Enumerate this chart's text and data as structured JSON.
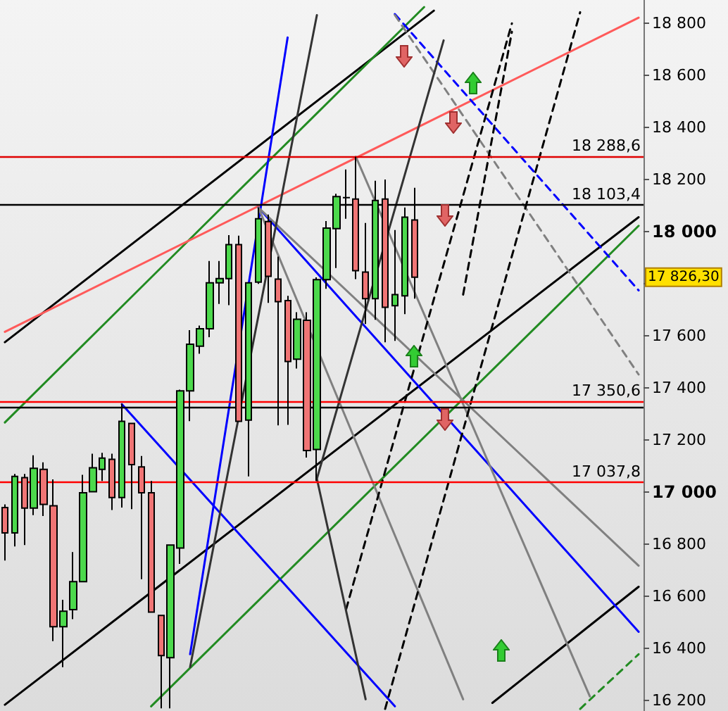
{
  "chart_data": {
    "type": "candlestick",
    "categories": [
      null,
      null,
      null,
      null,
      null,
      null,
      null,
      null,
      null,
      null,
      null,
      null,
      null,
      null,
      null,
      null,
      null,
      null,
      null,
      null,
      null,
      null,
      null,
      null,
      null,
      null,
      null,
      null,
      null,
      null,
      null,
      null,
      null,
      null,
      null,
      null,
      null,
      null,
      null,
      null,
      null,
      null,
      null,
      null,
      null,
      null,
      null,
      null,
      null,
      null,
      null,
      null,
      null,
      null,
      null,
      null,
      null,
      null,
      null,
      null,
      null,
      null,
      null,
      null,
      null,
      null
    ],
    "ohlc": [
      [
        16941,
        16953,
        16738,
        16844
      ],
      [
        16844,
        17070,
        16792,
        17061
      ],
      [
        17056,
        17070,
        16797,
        16939
      ],
      [
        16939,
        17142,
        16912,
        17092
      ],
      [
        17088,
        17115,
        16909,
        16953
      ],
      [
        16948,
        17049,
        16428,
        16484
      ],
      [
        16484,
        16587,
        16328,
        16543
      ],
      [
        16549,
        16770,
        16513,
        16657
      ],
      [
        16657,
        17067,
        16657,
        16998
      ],
      [
        17002,
        17148,
        17002,
        17094
      ],
      [
        17088,
        17151,
        17043,
        17131
      ],
      [
        17126,
        17148,
        16932,
        16980
      ],
      [
        16980,
        17340,
        16941,
        17272
      ],
      [
        17264,
        17264,
        16935,
        17106
      ],
      [
        17097,
        17139,
        16666,
        16998
      ],
      [
        16998,
        17043,
        16540,
        16540
      ],
      [
        16527,
        16527,
        16170,
        16373
      ],
      [
        16365,
        16800,
        16170,
        16797
      ],
      [
        16786,
        17394,
        16725,
        17389
      ],
      [
        17389,
        17622,
        17273,
        17568
      ],
      [
        17561,
        17640,
        17532,
        17628
      ],
      [
        17628,
        17888,
        17595,
        17804
      ],
      [
        17804,
        17888,
        17723,
        17820
      ],
      [
        17820,
        17987,
        17718,
        17951
      ],
      [
        17951,
        17985,
        17272,
        17272
      ],
      [
        17277,
        17804,
        17061,
        17804
      ],
      [
        17807,
        18093,
        17800,
        18050
      ],
      [
        18039,
        18066,
        17727,
        17829
      ],
      [
        17818,
        17905,
        17257,
        17732
      ],
      [
        17736,
        17754,
        17259,
        17502
      ],
      [
        17511,
        17691,
        17475,
        17664
      ],
      [
        17660,
        17691,
        17133,
        17160
      ],
      [
        17164,
        17825,
        17043,
        17816
      ],
      [
        17816,
        18041,
        17781,
        18014
      ],
      [
        18012,
        18146,
        17861,
        18135
      ],
      [
        18131,
        18239,
        18050,
        18131
      ],
      [
        18126,
        18288,
        17818,
        17851
      ],
      [
        17845,
        18034,
        17646,
        17743
      ],
      [
        17743,
        18196,
        17662,
        18120
      ],
      [
        18126,
        18201,
        17576,
        17710
      ],
      [
        17716,
        18007,
        17581,
        17759
      ],
      [
        17754,
        18093,
        17684,
        18056
      ],
      [
        18045,
        18169,
        17743,
        17826
      ],
      null,
      null,
      null,
      null,
      null,
      null,
      null,
      null,
      null,
      null,
      null,
      null,
      null,
      null,
      null,
      null,
      null,
      null,
      null,
      null,
      null,
      null,
      null
    ],
    "colors": [
      "#f07575",
      "#4cd94c",
      "#f07575",
      "#4cd94c",
      "#f07575",
      "#f07575",
      "#4cd94c",
      "#4cd94c",
      "#4cd94c",
      "#4cd94c",
      "#4cd94c",
      "#f07575",
      "#4cd94c",
      "#f07575",
      "#f07575",
      "#f07575",
      "#f07575",
      "#4cd94c",
      "#4cd94c",
      "#4cd94c",
      "#4cd94c",
      "#4cd94c",
      "#4cd94c",
      "#4cd94c",
      "#f07575",
      "#4cd94c",
      "#4cd94c",
      "#f07575",
      "#f07575",
      "#f07575",
      "#4cd94c",
      "#f07575",
      "#4cd94c",
      "#4cd94c",
      "#4cd94c",
      "#000000",
      "#f07575",
      "#f07575",
      "#4cd94c",
      "#f07575",
      "#4cd94c",
      "#4cd94c",
      "#f07575",
      null,
      null,
      null,
      null,
      null,
      null,
      null,
      null,
      null,
      null,
      null,
      null,
      null,
      null,
      null,
      null,
      null,
      null,
      null,
      null,
      null,
      null,
      null
    ],
    "series": [
      {
        "type": "line",
        "color": "#000000",
        "values": [
          17576,
          null,
          null,
          null,
          null,
          null,
          null,
          null,
          null,
          null,
          null,
          null,
          null,
          null,
          null,
          null,
          null,
          null,
          null,
          null,
          null,
          null,
          null,
          null,
          null,
          null,
          null,
          null,
          null,
          null,
          null,
          null,
          null,
          null,
          null,
          null,
          null,
          null,
          null,
          null,
          null,
          null,
          null,
          null,
          18849,
          null,
          null,
          null,
          null,
          null,
          null,
          null,
          null,
          null,
          null,
          null,
          null,
          null,
          null,
          null,
          null,
          null,
          null,
          null,
          null,
          null
        ]
      },
      {
        "type": "line",
        "color": "#000000",
        "values": [
          16184,
          null,
          null,
          null,
          null,
          null,
          null,
          null,
          null,
          null,
          null,
          null,
          null,
          null,
          null,
          null,
          null,
          null,
          null,
          null,
          null,
          null,
          null,
          null,
          null,
          null,
          null,
          null,
          null,
          null,
          null,
          null,
          null,
          null,
          null,
          null,
          null,
          null,
          null,
          null,
          null,
          null,
          null,
          null,
          null,
          null,
          null,
          null,
          null,
          null,
          null,
          null,
          null,
          null,
          null,
          null,
          null,
          null,
          null,
          null,
          null,
          null,
          null,
          null,
          null,
          18056
        ]
      },
      {
        "type": "line",
        "color": "#000000",
        "values": [
          null,
          null,
          null,
          null,
          null,
          null,
          null,
          null,
          null,
          null,
          null,
          null,
          null,
          null,
          null,
          null,
          null,
          null,
          null,
          null,
          null,
          null,
          null,
          null,
          null,
          null,
          null,
          null,
          null,
          null,
          null,
          null,
          null,
          null,
          null,
          null,
          null,
          null,
          null,
          null,
          null,
          null,
          null,
          null,
          null,
          null,
          null,
          null,
          null,
          null,
          16191,
          null,
          null,
          null,
          null,
          null,
          null,
          null,
          null,
          null,
          null,
          null,
          null,
          null,
          null,
          16637
        ]
      },
      {
        "type": "line",
        "color": "#228b22",
        "values": [
          17268,
          null,
          null,
          null,
          null,
          null,
          null,
          null,
          null,
          null,
          null,
          null,
          null,
          null,
          null,
          null,
          null,
          null,
          null,
          null,
          null,
          null,
          null,
          null,
          null,
          null,
          null,
          null,
          null,
          null,
          null,
          null,
          null,
          null,
          null,
          null,
          null,
          null,
          null,
          null,
          null,
          null,
          null,
          18863,
          null,
          null,
          null,
          null,
          null,
          null,
          null,
          null,
          null,
          null,
          null,
          null,
          null,
          null,
          null,
          null,
          null,
          null,
          null,
          null,
          null,
          null
        ]
      },
      {
        "type": "line",
        "color": "#228b22",
        "values": [
          null,
          null,
          null,
          null,
          null,
          null,
          null,
          null,
          null,
          null,
          null,
          null,
          null,
          null,
          null,
          16178,
          null,
          null,
          null,
          null,
          null,
          null,
          null,
          null,
          null,
          null,
          null,
          null,
          null,
          null,
          null,
          null,
          null,
          null,
          null,
          null,
          null,
          null,
          null,
          null,
          null,
          null,
          null,
          null,
          null,
          null,
          null,
          null,
          null,
          null,
          null,
          null,
          null,
          null,
          null,
          null,
          null,
          null,
          null,
          null,
          null,
          null,
          null,
          null,
          null,
          18023
        ]
      },
      {
        "type": "line",
        "color": "#228b22",
        "line_style": "dashed",
        "values": [
          null,
          null,
          null,
          null,
          null,
          null,
          null,
          null,
          null,
          null,
          null,
          null,
          null,
          null,
          null,
          null,
          null,
          null,
          null,
          null,
          null,
          null,
          null,
          null,
          null,
          null,
          null,
          null,
          null,
          null,
          null,
          null,
          null,
          null,
          null,
          null,
          null,
          null,
          null,
          null,
          null,
          null,
          null,
          null,
          null,
          null,
          null,
          null,
          null,
          null,
          null,
          null,
          null,
          null,
          null,
          null,
          null,
          null,
          null,
          16168,
          null,
          null,
          null,
          null,
          null,
          16378
        ]
      },
      {
        "type": "line",
        "color": "#ff5a5a",
        "values": [
          17616,
          null,
          null,
          null,
          null,
          null,
          null,
          null,
          null,
          null,
          null,
          null,
          null,
          null,
          null,
          null,
          null,
          null,
          null,
          null,
          null,
          null,
          null,
          null,
          null,
          null,
          null,
          null,
          null,
          null,
          null,
          null,
          null,
          null,
          null,
          null,
          null,
          null,
          null,
          null,
          null,
          null,
          null,
          null,
          null,
          null,
          null,
          null,
          null,
          null,
          null,
          null,
          null,
          null,
          null,
          null,
          null,
          null,
          null,
          null,
          null,
          null,
          null,
          null,
          null,
          18822
        ]
      },
      {
        "type": "line",
        "color": "#0000ff",
        "values": [
          null,
          null,
          null,
          null,
          null,
          null,
          null,
          null,
          null,
          null,
          null,
          null,
          null,
          null,
          null,
          null,
          null,
          null,
          null,
          16378,
          null,
          null,
          null,
          null,
          null,
          null,
          null,
          null,
          null,
          18746,
          null,
          null,
          null,
          null,
          null,
          null,
          null,
          null,
          null,
          null,
          null,
          null,
          null,
          null,
          null,
          null,
          null,
          null,
          null,
          null,
          null,
          null,
          null,
          null,
          null,
          null,
          null,
          null,
          null,
          null,
          null,
          null,
          null,
          null,
          null,
          null
        ]
      },
      {
        "type": "line",
        "color": "#0000ff",
        "values": [
          null,
          null,
          null,
          null,
          null,
          null,
          null,
          null,
          null,
          null,
          null,
          null,
          17338,
          null,
          null,
          null,
          null,
          null,
          null,
          null,
          null,
          null,
          null,
          null,
          null,
          null,
          null,
          null,
          null,
          null,
          null,
          null,
          null,
          null,
          null,
          null,
          null,
          null,
          null,
          null,
          16178,
          null,
          null,
          null,
          null,
          null,
          null,
          null,
          null,
          null,
          null,
          null,
          null,
          null,
          null,
          null,
          null,
          null,
          null,
          null,
          null,
          null,
          null,
          null,
          null,
          null
        ]
      },
      {
        "type": "line",
        "color": "#0000ff",
        "values": [
          null,
          null,
          null,
          null,
          null,
          null,
          null,
          null,
          null,
          null,
          null,
          null,
          null,
          null,
          null,
          null,
          null,
          null,
          null,
          null,
          null,
          null,
          null,
          null,
          null,
          null,
          18093,
          null,
          null,
          null,
          null,
          null,
          null,
          null,
          null,
          null,
          null,
          null,
          null,
          null,
          null,
          null,
          null,
          null,
          null,
          null,
          null,
          null,
          null,
          null,
          null,
          null,
          null,
          null,
          null,
          null,
          null,
          null,
          null,
          null,
          null,
          null,
          null,
          null,
          null,
          16464
        ]
      },
      {
        "type": "line",
        "color": "#0000ff",
        "line_style": "dashed",
        "values": [
          null,
          null,
          null,
          null,
          null,
          null,
          null,
          null,
          null,
          null,
          null,
          null,
          null,
          null,
          null,
          null,
          null,
          null,
          null,
          null,
          null,
          null,
          null,
          null,
          null,
          null,
          null,
          null,
          null,
          null,
          null,
          null,
          null,
          null,
          null,
          null,
          null,
          null,
          null,
          null,
          18836,
          null,
          null,
          null,
          null,
          null,
          null,
          null,
          null,
          null,
          null,
          null,
          null,
          null,
          null,
          null,
          null,
          null,
          null,
          null,
          null,
          null,
          null,
          null,
          null,
          17775
        ]
      },
      {
        "type": "line",
        "color": "#808080",
        "values": [
          null,
          null,
          null,
          null,
          null,
          null,
          null,
          null,
          null,
          null,
          null,
          null,
          null,
          null,
          null,
          null,
          null,
          null,
          null,
          null,
          null,
          null,
          null,
          null,
          null,
          null,
          18093,
          null,
          null,
          null,
          null,
          null,
          null,
          null,
          null,
          null,
          null,
          null,
          null,
          null,
          null,
          null,
          null,
          null,
          null,
          null,
          null,
          null,
          null,
          null,
          null,
          null,
          null,
          null,
          null,
          null,
          null,
          null,
          null,
          null,
          null,
          null,
          null,
          null,
          null,
          16718
        ]
      },
      {
        "type": "line",
        "color": "#808080",
        "values": [
          null,
          null,
          null,
          null,
          null,
          null,
          null,
          null,
          null,
          null,
          null,
          null,
          null,
          null,
          null,
          null,
          null,
          null,
          null,
          null,
          null,
          null,
          null,
          null,
          null,
          null,
          null,
          null,
          null,
          null,
          null,
          null,
          null,
          null,
          null,
          null,
          18288,
          null,
          null,
          null,
          null,
          null,
          null,
          null,
          null,
          null,
          null,
          null,
          null,
          null,
          null,
          null,
          null,
          null,
          null,
          null,
          null,
          null,
          null,
          null,
          16216,
          null,
          null,
          null,
          null,
          null
        ]
      },
      {
        "type": "line",
        "color": "#808080",
        "values": [
          null,
          null,
          null,
          null,
          null,
          null,
          null,
          null,
          null,
          null,
          null,
          null,
          null,
          null,
          null,
          null,
          null,
          null,
          null,
          null,
          null,
          null,
          null,
          null,
          null,
          null,
          18093,
          null,
          null,
          null,
          null,
          null,
          null,
          null,
          null,
          null,
          null,
          null,
          null,
          null,
          null,
          null,
          null,
          null,
          null,
          null,
          null,
          16205,
          null,
          null,
          null,
          null,
          null,
          null,
          null,
          null,
          null,
          null,
          null,
          null,
          null,
          null,
          null,
          null,
          null,
          null
        ]
      },
      {
        "type": "line",
        "color": "#808080",
        "line_style": "dashed",
        "values": [
          null,
          null,
          null,
          null,
          null,
          null,
          null,
          null,
          null,
          null,
          null,
          null,
          null,
          null,
          null,
          null,
          null,
          null,
          null,
          null,
          null,
          null,
          null,
          null,
          null,
          null,
          null,
          null,
          null,
          null,
          null,
          null,
          null,
          null,
          null,
          null,
          null,
          null,
          null,
          null,
          18832,
          null,
          null,
          null,
          null,
          null,
          null,
          null,
          null,
          null,
          null,
          null,
          null,
          null,
          null,
          null,
          null,
          null,
          null,
          null,
          null,
          null,
          null,
          null,
          null,
          17452
        ]
      },
      {
        "type": "line",
        "color": "#000000",
        "line_style": "dashed",
        "values": [
          null,
          null,
          null,
          null,
          null,
          null,
          null,
          null,
          null,
          null,
          null,
          null,
          null,
          null,
          null,
          null,
          null,
          null,
          null,
          null,
          null,
          null,
          null,
          null,
          null,
          null,
          null,
          null,
          null,
          null,
          null,
          null,
          null,
          null,
          null,
          16551,
          null,
          null,
          null,
          null,
          null,
          null,
          null,
          null,
          null,
          null,
          null,
          null,
          null,
          null,
          null,
          null,
          18800,
          null,
          null,
          null,
          null,
          null,
          null,
          null,
          null,
          null,
          null,
          null,
          null,
          null
        ]
      },
      {
        "type": "line",
        "color": "#000000",
        "line_style": "dashed",
        "values": [
          null,
          null,
          null,
          null,
          null,
          null,
          null,
          null,
          null,
          null,
          null,
          null,
          null,
          null,
          null,
          null,
          null,
          null,
          null,
          null,
          null,
          null,
          null,
          null,
          null,
          null,
          null,
          null,
          null,
          null,
          null,
          null,
          null,
          null,
          null,
          null,
          null,
          null,
          null,
          16168,
          null,
          null,
          null,
          null,
          null,
          null,
          null,
          null,
          null,
          null,
          null,
          null,
          null,
          null,
          null,
          null,
          null,
          null,
          null,
          18843,
          null,
          null,
          null,
          null,
          null,
          null
        ]
      },
      {
        "type": "line",
        "color": "#000000",
        "line_style": "dashed",
        "values": [
          null,
          null,
          null,
          null,
          null,
          null,
          null,
          null,
          null,
          null,
          null,
          null,
          null,
          null,
          null,
          null,
          null,
          null,
          null,
          null,
          null,
          null,
          null,
          null,
          null,
          null,
          null,
          null,
          null,
          null,
          null,
          null,
          null,
          null,
          null,
          null,
          null,
          null,
          null,
          null,
          null,
          null,
          null,
          null,
          null,
          null,
          null,
          17759,
          null,
          null,
          null,
          null,
          18768,
          null,
          null,
          null,
          null,
          null,
          null,
          null,
          null,
          null,
          null,
          null,
          null,
          null
        ]
      },
      {
        "type": "line",
        "color": "#333333",
        "values": [
          null,
          null,
          null,
          null,
          null,
          null,
          null,
          null,
          null,
          null,
          null,
          null,
          null,
          null,
          null,
          null,
          null,
          null,
          null,
          16329,
          null,
          null,
          null,
          null,
          null,
          null,
          null,
          null,
          null,
          null,
          null,
          null,
          18832,
          null,
          null,
          null,
          null,
          null,
          null,
          null,
          null,
          null,
          null,
          null,
          null,
          null,
          null,
          null,
          null,
          null,
          null,
          null,
          null,
          null,
          null,
          null,
          null,
          null,
          null,
          null,
          null,
          null,
          null,
          null,
          null,
          null
        ]
      },
      {
        "type": "line",
        "color": "#333333",
        "values": [
          null,
          null,
          null,
          null,
          null,
          null,
          null,
          null,
          null,
          null,
          null,
          null,
          null,
          null,
          null,
          null,
          null,
          null,
          null,
          null,
          null,
          null,
          null,
          null,
          null,
          null,
          null,
          null,
          null,
          null,
          null,
          null,
          17052,
          null,
          null,
          null,
          null,
          16205,
          null,
          null,
          null,
          null,
          null,
          null,
          null,
          null,
          null,
          null,
          null,
          null,
          null,
          null,
          null,
          null,
          null,
          null,
          null,
          null,
          null,
          null,
          null,
          null,
          null,
          null,
          null,
          null
        ]
      },
      {
        "type": "line",
        "color": "#333333",
        "values": [
          null,
          null,
          null,
          null,
          null,
          null,
          null,
          null,
          null,
          null,
          null,
          null,
          null,
          null,
          null,
          null,
          null,
          null,
          null,
          null,
          null,
          null,
          null,
          null,
          null,
          null,
          null,
          null,
          null,
          null,
          null,
          null,
          17052,
          null,
          null,
          null,
          null,
          null,
          null,
          null,
          null,
          null,
          null,
          null,
          null,
          18735,
          null,
          null,
          null,
          null,
          null,
          null,
          null,
          null,
          null,
          null,
          null,
          null,
          null,
          null,
          null,
          null,
          null,
          null,
          null,
          null
        ]
      }
    ],
    "ylim": [
      16160,
      18890
    ],
    "yticks": [
      {
        "value": 16200,
        "label": "16 200"
      },
      {
        "value": 16400,
        "label": "16 400"
      },
      {
        "value": 16600,
        "label": "16 600"
      },
      {
        "value": 16800,
        "label": "16 800"
      },
      {
        "value": 17000,
        "label": "17 000"
      },
      {
        "value": 17200,
        "label": "17 200"
      },
      {
        "value": 17400,
        "label": "17 400"
      },
      {
        "value": 17600,
        "label": "17 600"
      },
      {
        "value": 17800,
        "label": null
      },
      {
        "value": 18000,
        "label": "18 000"
      },
      {
        "value": 18200,
        "label": "18 200"
      },
      {
        "value": 18400,
        "label": "18 400"
      },
      {
        "value": 18600,
        "label": "18 600"
      },
      {
        "value": 18800,
        "label": "18 800"
      }
    ],
    "ref_lines": [
      {
        "axis": "y",
        "value": 18288.6,
        "label": "18 288,6",
        "color": "#e00000"
      },
      {
        "axis": "y",
        "value": 18103.4,
        "label": "18 103,4",
        "color": "#000000"
      },
      {
        "axis": "y",
        "value": 17350.6,
        "label": "17 350,6",
        "color": "#ff0000"
      },
      {
        "axis": "y",
        "value": 17327,
        "color": "#000000"
      },
      {
        "axis": "y",
        "value": 17037.8,
        "label": "17 037,8",
        "color": "#ff0000"
      }
    ],
    "annotations": [
      "17 826,30"
    ],
    "tick_labels": "y",
    "grid": false
  }
}
